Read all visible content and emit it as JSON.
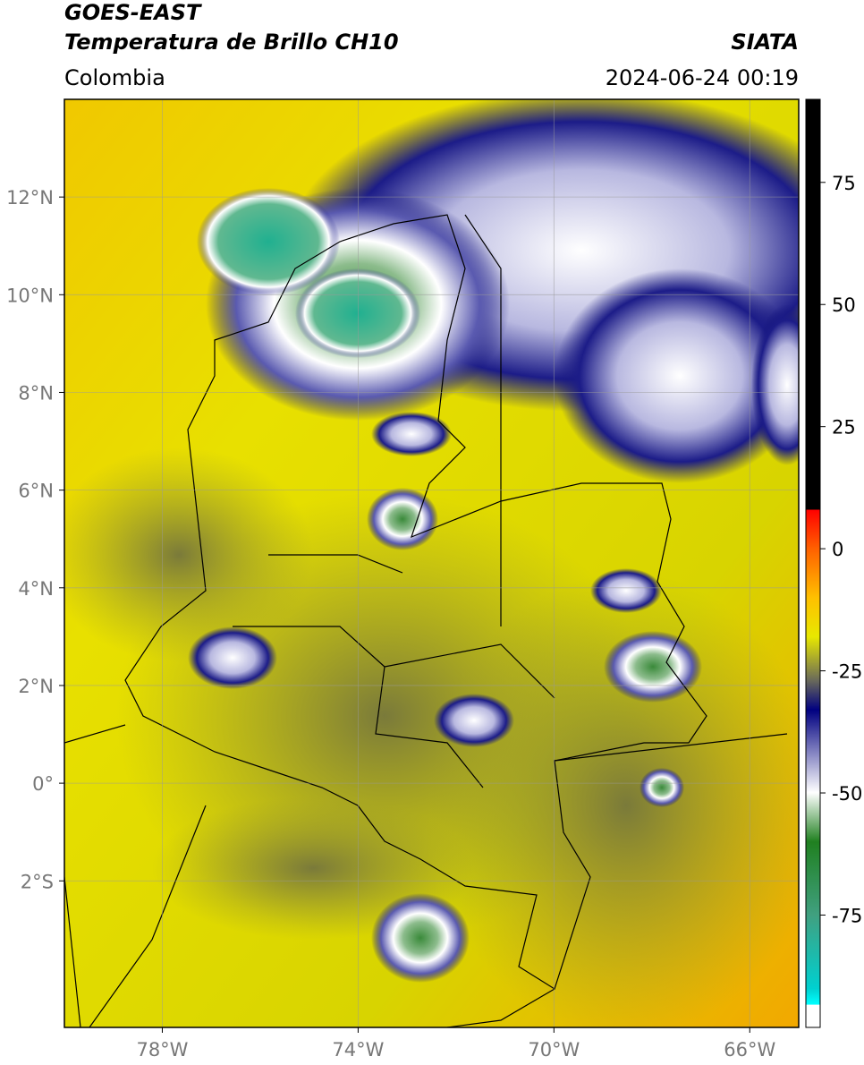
{
  "header": {
    "title": "GOES-EAST",
    "subtitle": "Temperatura de Brillo CH10",
    "source": "SIATA",
    "region": "Colombia",
    "timestamp": "2024-06-24 00:19"
  },
  "map": {
    "xlim": [
      -80,
      -65
    ],
    "ylim": [
      -5,
      14
    ],
    "xticks": [
      {
        "value": -78,
        "label": "78°W"
      },
      {
        "value": -74,
        "label": "74°W"
      },
      {
        "value": -70,
        "label": "70°W"
      },
      {
        "value": -66,
        "label": "66°W"
      }
    ],
    "yticks": [
      {
        "value": 12,
        "label": "12°N"
      },
      {
        "value": 10,
        "label": "10°N"
      },
      {
        "value": 8,
        "label": "8°N"
      },
      {
        "value": 6,
        "label": "6°N"
      },
      {
        "value": 4,
        "label": "4°N"
      },
      {
        "value": 2,
        "label": "2°N"
      },
      {
        "value": 0,
        "label": "0°"
      },
      {
        "value": -2,
        "label": "2°S"
      }
    ],
    "grid": true
  },
  "colorbar": {
    "lim": [
      -98,
      92
    ],
    "ticks": [
      75,
      50,
      25,
      0,
      -25,
      -50,
      -75
    ]
  }
}
